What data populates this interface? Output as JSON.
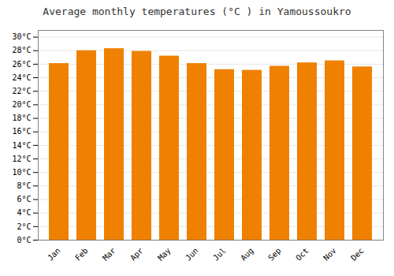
{
  "chart_data": {
    "type": "bar",
    "title": "Average monthly temperatures (°C ) in Yamoussoukro",
    "categories": [
      "Jan",
      "Feb",
      "Mar",
      "Apr",
      "May",
      "Jun",
      "Jul",
      "Aug",
      "Sep",
      "Oct",
      "Nov",
      "Dec"
    ],
    "values": [
      26.1,
      28.0,
      28.3,
      27.9,
      27.2,
      26.1,
      25.2,
      25.1,
      25.7,
      26.2,
      26.5,
      25.6
    ],
    "color": "#F08000",
    "ylim": [
      0,
      31
    ],
    "yticks": [
      {
        "value": 0,
        "label": "0°C"
      },
      {
        "value": 2,
        "label": "2°C"
      },
      {
        "value": 4,
        "label": "4°C"
      },
      {
        "value": 6,
        "label": "6°C"
      },
      {
        "value": 8,
        "label": "8°C"
      },
      {
        "value": 10,
        "label": "10°C"
      },
      {
        "value": 12,
        "label": "12°C"
      },
      {
        "value": 14,
        "label": "14°C"
      },
      {
        "value": 16,
        "label": "16°C"
      },
      {
        "value": 18,
        "label": "18°C"
      },
      {
        "value": 20,
        "label": "20°C"
      },
      {
        "value": 22,
        "label": "22°C"
      },
      {
        "value": 24,
        "label": "24°C"
      },
      {
        "value": 26,
        "label": "26°C"
      },
      {
        "value": 28,
        "label": "28°C"
      },
      {
        "value": 30,
        "label": "30°C"
      }
    ],
    "grid": true
  }
}
